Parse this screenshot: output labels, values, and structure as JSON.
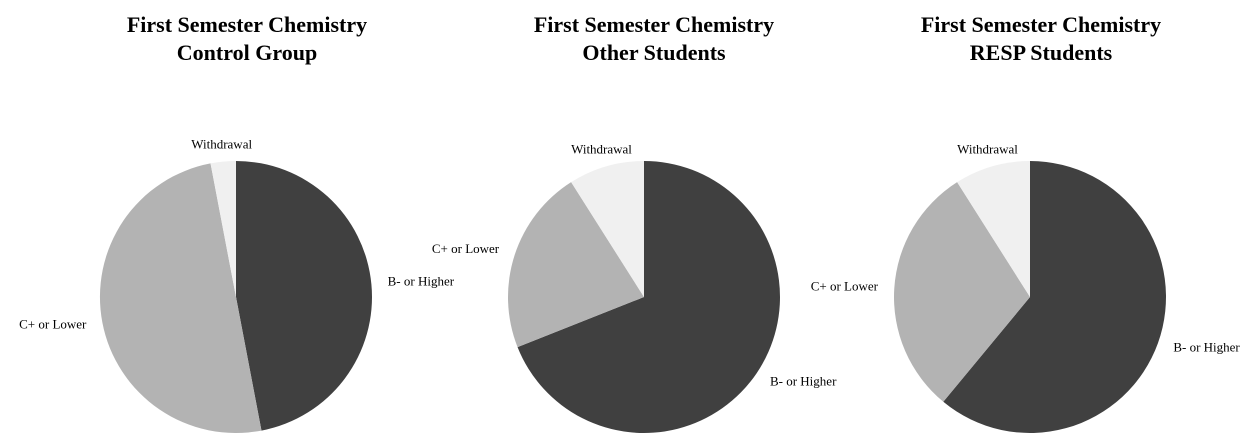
{
  "chart_data": [
    {
      "type": "pie",
      "title": "First Semester Chemistry",
      "subtitle": "Control Group",
      "categories": [
        "B- or Higher",
        "C+ or Lower",
        "Withdrawal"
      ],
      "values": [
        47,
        50,
        3
      ],
      "colors": [
        "#404040",
        "#b3b3b3",
        "#f0f0f0"
      ]
    },
    {
      "type": "pie",
      "title": "First Semester Chemistry",
      "subtitle": "Other Students",
      "categories": [
        "B- or Higher",
        "C+ or Lower",
        "Withdrawal"
      ],
      "values": [
        69,
        22,
        9
      ],
      "colors": [
        "#404040",
        "#b3b3b3",
        "#f0f0f0"
      ]
    },
    {
      "type": "pie",
      "title": "First Semester Chemistry",
      "subtitle": "RESP Students",
      "categories": [
        "B- or Higher",
        "C+ or Lower",
        "Withdrawal"
      ],
      "values": [
        61,
        30,
        9
      ],
      "colors": [
        "#404040",
        "#b3b3b3",
        "#f0f0f0"
      ]
    }
  ]
}
